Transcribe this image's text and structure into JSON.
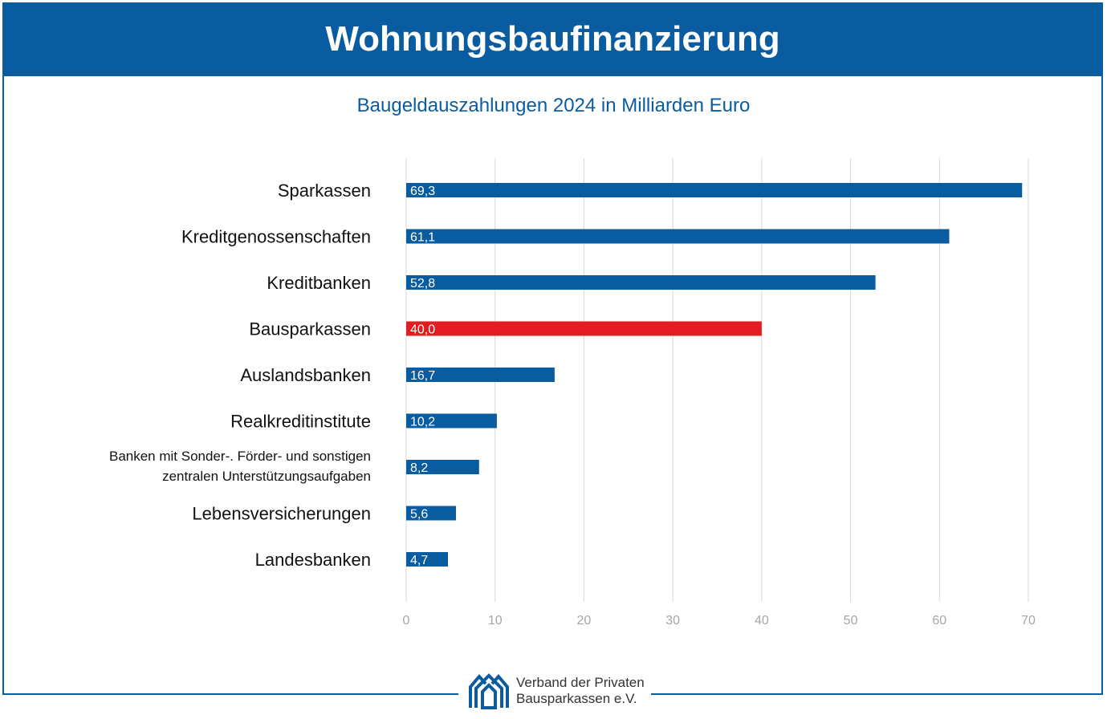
{
  "header": {
    "title": "Wohnungsbaufinanzierung"
  },
  "chart_data": {
    "type": "bar",
    "orientation": "horizontal",
    "title": "Baugeldauszahlungen 2024 in Milliarden Euro",
    "categories": [
      "Sparkassen",
      "Kreditgenossenschaften",
      "Kreditbanken",
      "Bausparkassen",
      "Auslandsbanken",
      "Realkreditinstitute",
      "Banken mit Sonder-. Förder- und sonstigen zentralen Unterstützungsaufgaben",
      "Lebensversicherungen",
      "Landesbanken"
    ],
    "category_lines": [
      [
        "Sparkassen"
      ],
      [
        "Kreditgenossenschaften"
      ],
      [
        "Kreditbanken"
      ],
      [
        "Bausparkassen"
      ],
      [
        "Auslandsbanken"
      ],
      [
        "Realkreditinstitute"
      ],
      [
        "Banken mit Sonder-. Förder- und sonstigen",
        "zentralen Unterstützungsaufgaben"
      ],
      [
        "Lebensversicherungen"
      ],
      [
        "Landesbanken"
      ]
    ],
    "values": [
      69.3,
      61.1,
      52.8,
      40.0,
      16.7,
      10.2,
      8.2,
      5.6,
      4.7
    ],
    "data_labels": [
      "69,3",
      "61,1",
      "52,8",
      "40,0",
      "16,7",
      "10,2",
      "8,2",
      "5,6",
      "4,7"
    ],
    "highlight": "Bausparkassen",
    "xlim": [
      0,
      70
    ],
    "xticks": [
      "0",
      "10",
      "20",
      "30",
      "40",
      "50",
      "60",
      "70"
    ],
    "grid": true,
    "colors": {
      "bar": "#0a5ca0",
      "highlight": "#e31b23",
      "grid": "#d9d9d9",
      "tick": "#a6a6a6"
    }
  },
  "footer": {
    "logo_line1": "Verband der Privaten",
    "logo_line2": "Bausparkassen e.V."
  }
}
